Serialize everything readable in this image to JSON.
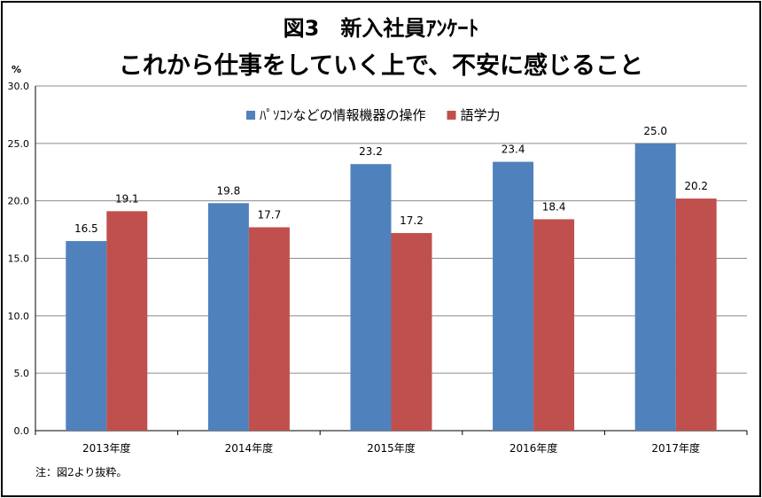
{
  "chart_data": {
    "type": "bar",
    "title": "図3　新入社員ｱﾝｹｰﾄ",
    "subtitle": "これから仕事をしていく上で、不安に感じること",
    "ylabel": "%",
    "xlabel": "",
    "ylim": [
      0,
      30
    ],
    "yticks": [
      "0.0",
      "5.0",
      "10.0",
      "15.0",
      "20.0",
      "25.0",
      "30.0"
    ],
    "grid": true,
    "legend_position": "top",
    "categories": [
      "2013年度",
      "2014年度",
      "2015年度",
      "2016年度",
      "2017年度"
    ],
    "series": [
      {
        "name": "ﾊﾟｿｺﾝなどの情報機器の操作",
        "color": "#4f81bd",
        "values": [
          16.5,
          19.8,
          23.2,
          23.4,
          25.0
        ]
      },
      {
        "name": "語学力",
        "color": "#c0504d",
        "values": [
          19.1,
          17.7,
          17.2,
          18.4,
          20.2
        ]
      }
    ]
  },
  "footnote": "注：図2より抜粋。"
}
